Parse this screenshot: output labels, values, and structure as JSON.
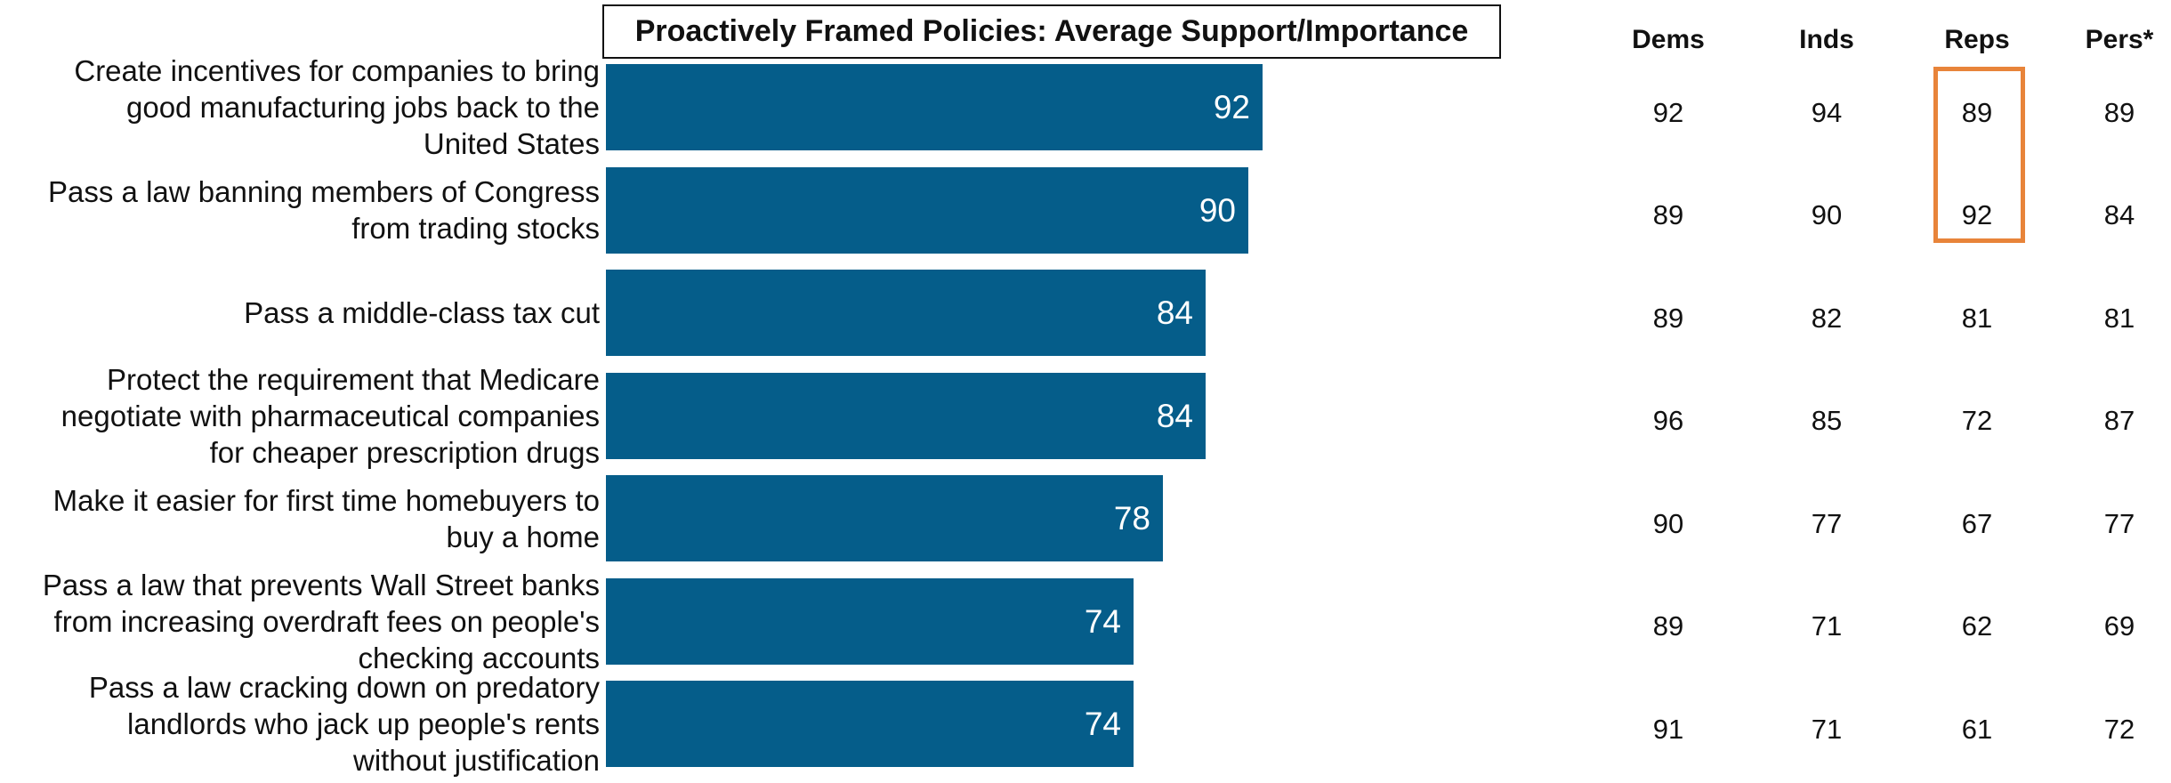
{
  "chart_data": {
    "type": "bar",
    "orientation": "horizontal",
    "title": "Proactively Framed Policies: Average Support/Importance",
    "categories": [
      [
        "Create incentives for companies to bring",
        "good manufacturing jobs back to the",
        "United States"
      ],
      [
        "Pass a law banning members of Congress",
        "from trading stocks"
      ],
      [
        "Pass a middle-class tax cut"
      ],
      [
        "Protect the requirement that Medicare",
        "negotiate with pharmaceutical companies",
        "for cheaper prescription drugs"
      ],
      [
        "Make it easier for first time homebuyers to",
        "buy a home"
      ],
      [
        "Pass a law that prevents Wall Street banks",
        "from increasing overdraft fees on people's",
        "checking accounts"
      ],
      [
        "Pass a law cracking down on predatory",
        "landlords who jack up people's rents",
        "without justification"
      ]
    ],
    "values": [
      92,
      90,
      84,
      84,
      78,
      74,
      74
    ],
    "xlim": [
      0,
      100
    ],
    "bar_color": "#055d8a",
    "value_label_color": "#ffffff",
    "table": {
      "columns": [
        "Dems",
        "Inds",
        "Reps",
        "Pers*"
      ],
      "rows": [
        [
          92,
          94,
          89,
          89
        ],
        [
          89,
          90,
          92,
          84
        ],
        [
          89,
          82,
          81,
          81
        ],
        [
          96,
          85,
          72,
          87
        ],
        [
          90,
          77,
          67,
          77
        ],
        [
          89,
          71,
          62,
          69
        ],
        [
          91,
          71,
          61,
          72
        ]
      ]
    },
    "highlight": {
      "column": "Reps",
      "rows": [
        0,
        1
      ],
      "color": "#e8843a"
    }
  }
}
